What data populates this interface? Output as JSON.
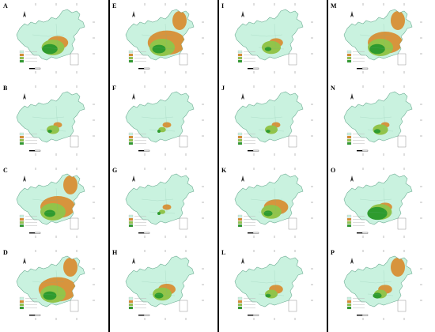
{
  "figure": {
    "panels": [
      {
        "label": "A",
        "classes": {
          "s": 0.12,
          "m": 0.18,
          "h": 0.14,
          "ne": 0
        }
      },
      {
        "label": "B",
        "classes": {
          "s": 0.05,
          "m": 0.1,
          "h": 0.04,
          "ne": 0
        }
      },
      {
        "label": "C",
        "classes": {
          "s": 0.2,
          "m": 0.2,
          "h": 0.1,
          "ne": 1
        }
      },
      {
        "label": "D",
        "classes": {
          "s": 0.22,
          "m": 0.2,
          "h": 0.12,
          "ne": 1
        }
      },
      {
        "label": "E",
        "classes": {
          "s": 0.22,
          "m": 0.2,
          "h": 0.12,
          "ne": 1
        }
      },
      {
        "label": "F",
        "classes": {
          "s": 0.05,
          "m": 0.06,
          "h": 0.02,
          "ne": 0
        }
      },
      {
        "label": "G",
        "classes": {
          "s": 0.05,
          "m": 0.05,
          "h": 0.02,
          "ne": 0
        }
      },
      {
        "label": "H",
        "classes": {
          "s": 0.1,
          "m": 0.15,
          "h": 0.08,
          "ne": 0
        }
      },
      {
        "label": "I",
        "classes": {
          "s": 0.08,
          "m": 0.15,
          "h": 0.06,
          "ne": 0
        }
      },
      {
        "label": "J",
        "classes": {
          "s": 0.05,
          "m": 0.1,
          "h": 0.04,
          "ne": 0
        }
      },
      {
        "label": "K",
        "classes": {
          "s": 0.14,
          "m": 0.16,
          "h": 0.08,
          "ne": 0
        }
      },
      {
        "label": "L",
        "classes": {
          "s": 0.08,
          "m": 0.1,
          "h": 0.05,
          "ne": 0
        }
      },
      {
        "label": "M",
        "classes": {
          "s": 0.2,
          "m": 0.2,
          "h": 0.14,
          "ne": 1
        }
      },
      {
        "label": "N",
        "classes": {
          "s": 0.05,
          "m": 0.12,
          "h": 0.06,
          "ne": 0
        }
      },
      {
        "label": "O",
        "classes": {
          "s": 0.08,
          "m": 0.18,
          "h": 0.18,
          "ne": 0
        }
      },
      {
        "label": "P",
        "classes": {
          "s": 0.08,
          "m": 0.1,
          "h": 0.08,
          "ne": 1
        }
      }
    ],
    "colors": {
      "unsuitable": "#c9f2df",
      "low": "#d88a2b",
      "moderate": "#92c44a",
      "high": "#2e9b2e",
      "border": "#6fae95",
      "divider": "#000000"
    }
  }
}
